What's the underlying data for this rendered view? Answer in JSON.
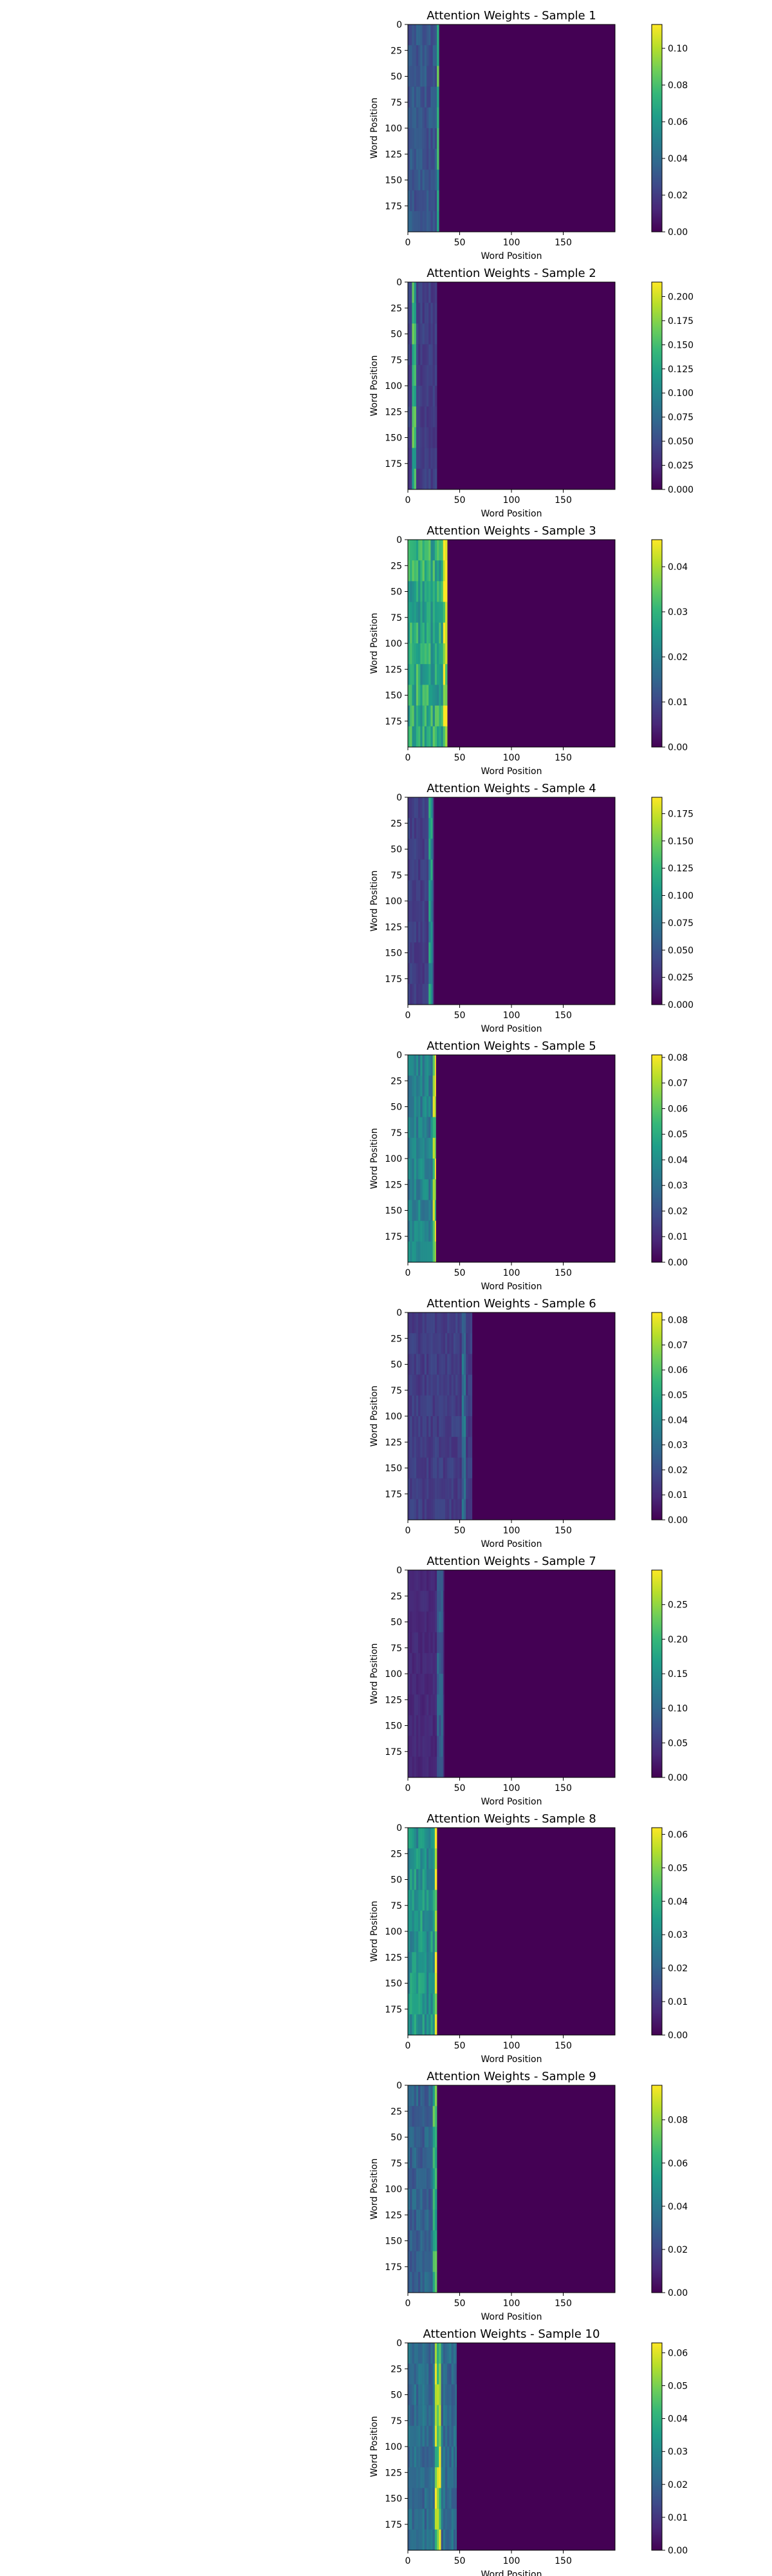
{
  "figure": {
    "colormap": "viridis",
    "viridis_stops": [
      "#440154",
      "#482878",
      "#3e4989",
      "#31688e",
      "#26828e",
      "#1f9e89",
      "#35b779",
      "#6ece58",
      "#b5de2b",
      "#fde725"
    ]
  },
  "chart_data": [
    {
      "type": "heatmap",
      "title": "Attention Weights - Sample 1",
      "xlabel": "Word Position",
      "ylabel": "Word Position",
      "x_ticks": [
        0,
        50,
        100,
        150
      ],
      "y_ticks": [
        0,
        25,
        50,
        75,
        100,
        125,
        150,
        175
      ],
      "xlim": [
        0,
        200
      ],
      "ylim": [
        200,
        0
      ],
      "colorbar": {
        "ticks": [
          "0.00",
          "0.02",
          "0.04",
          "0.06",
          "0.08",
          "0.10"
        ],
        "max": 0.113
      },
      "attended_positions": 30,
      "band_level": 0.03,
      "bright_column": {
        "start": 27,
        "end": 30,
        "level": 0.07
      }
    },
    {
      "type": "heatmap",
      "title": "Attention Weights - Sample 2",
      "xlabel": "Word Position",
      "ylabel": "Word Position",
      "x_ticks": [
        0,
        50,
        100,
        150
      ],
      "y_ticks": [
        0,
        25,
        50,
        75,
        100,
        125,
        150,
        175
      ],
      "xlim": [
        0,
        200
      ],
      "ylim": [
        200,
        0
      ],
      "colorbar": {
        "ticks": [
          "0.000",
          "0.025",
          "0.050",
          "0.075",
          "0.100",
          "0.125",
          "0.150",
          "0.175",
          "0.200"
        ],
        "max": 0.215
      },
      "attended_positions": 28,
      "band_level": 0.04,
      "bright_column": {
        "start": 3,
        "end": 7,
        "level": 0.14
      }
    },
    {
      "type": "heatmap",
      "title": "Attention Weights - Sample 3",
      "xlabel": "Word Position",
      "ylabel": "Word Position",
      "x_ticks": [
        0,
        50,
        100,
        150
      ],
      "y_ticks": [
        0,
        25,
        50,
        75,
        100,
        125,
        150,
        175
      ],
      "xlim": [
        0,
        200
      ],
      "ylim": [
        200,
        0
      ],
      "colorbar": {
        "ticks": [
          "0.00",
          "0.01",
          "0.02",
          "0.03",
          "0.04"
        ],
        "max": 0.046
      },
      "attended_positions": 38,
      "band_level": 0.028,
      "bright_column": {
        "start": 33,
        "end": 37,
        "level": 0.042
      }
    },
    {
      "type": "heatmap",
      "title": "Attention Weights - Sample 4",
      "xlabel": "Word Position",
      "ylabel": "Word Position",
      "x_ticks": [
        0,
        50,
        100,
        150
      ],
      "y_ticks": [
        0,
        25,
        50,
        75,
        100,
        125,
        150,
        175
      ],
      "xlim": [
        0,
        200
      ],
      "ylim": [
        200,
        0
      ],
      "colorbar": {
        "ticks": [
          "0.000",
          "0.025",
          "0.050",
          "0.075",
          "0.100",
          "0.125",
          "0.150",
          "0.175"
        ],
        "max": 0.19
      },
      "attended_positions": 25,
      "band_level": 0.035,
      "bright_column": {
        "start": 19,
        "end": 23,
        "level": 0.1
      }
    },
    {
      "type": "heatmap",
      "title": "Attention Weights - Sample 5",
      "xlabel": "Word Position",
      "ylabel": "Word Position",
      "x_ticks": [
        0,
        50,
        100,
        150
      ],
      "y_ticks": [
        0,
        25,
        50,
        75,
        100,
        125,
        150,
        175
      ],
      "xlim": [
        0,
        200
      ],
      "ylim": [
        200,
        0
      ],
      "colorbar": {
        "ticks": [
          "0.00",
          "0.01",
          "0.02",
          "0.03",
          "0.04",
          "0.05",
          "0.06",
          "0.07",
          "0.08"
        ],
        "max": 0.081
      },
      "attended_positions": 27,
      "band_level": 0.035,
      "bright_column": {
        "start": 24,
        "end": 27,
        "level": 0.07
      }
    },
    {
      "type": "heatmap",
      "title": "Attention Weights - Sample 6",
      "xlabel": "Word Position",
      "ylabel": "Word Position",
      "x_ticks": [
        0,
        50,
        100,
        150
      ],
      "y_ticks": [
        0,
        25,
        50,
        75,
        100,
        125,
        150,
        175
      ],
      "xlim": [
        0,
        200
      ],
      "ylim": [
        200,
        0
      ],
      "colorbar": {
        "ticks": [
          "0.00",
          "0.01",
          "0.02",
          "0.03",
          "0.04",
          "0.05",
          "0.06",
          "0.07",
          "0.08"
        ],
        "max": 0.083
      },
      "attended_positions": 62,
      "band_level": 0.015,
      "bright_column": {
        "start": 52,
        "end": 56,
        "level": 0.03
      }
    },
    {
      "type": "heatmap",
      "title": "Attention Weights - Sample 7",
      "xlabel": "Word Position",
      "ylabel": "Word Position",
      "x_ticks": [
        0,
        50,
        100,
        150
      ],
      "y_ticks": [
        0,
        25,
        50,
        75,
        100,
        125,
        150,
        175
      ],
      "xlim": [
        0,
        200
      ],
      "ylim": [
        200,
        0
      ],
      "colorbar": {
        "ticks": [
          "0.00",
          "0.05",
          "0.10",
          "0.15",
          "0.20",
          "0.25"
        ],
        "max": 0.3
      },
      "attended_positions": 35,
      "band_level": 0.035,
      "bright_column": {
        "start": 28,
        "end": 33,
        "level": 0.09
      }
    },
    {
      "type": "heatmap",
      "title": "Attention Weights - Sample 8",
      "xlabel": "Word Position",
      "ylabel": "Word Position",
      "x_ticks": [
        0,
        50,
        100,
        150
      ],
      "y_ticks": [
        0,
        25,
        50,
        75,
        100,
        125,
        150,
        175
      ],
      "xlim": [
        0,
        200
      ],
      "ylim": [
        200,
        0
      ],
      "colorbar": {
        "ticks": [
          "0.00",
          "0.01",
          "0.02",
          "0.03",
          "0.04",
          "0.05",
          "0.06"
        ],
        "max": 0.062
      },
      "attended_positions": 28,
      "band_level": 0.032,
      "bright_column": {
        "start": 25,
        "end": 28,
        "level": 0.056
      }
    },
    {
      "type": "heatmap",
      "title": "Attention Weights - Sample 9",
      "xlabel": "Word Position",
      "ylabel": "Word Position",
      "x_ticks": [
        0,
        50,
        100,
        150
      ],
      "y_ticks": [
        0,
        25,
        50,
        75,
        100,
        125,
        150,
        175
      ],
      "xlim": [
        0,
        200
      ],
      "ylim": [
        200,
        0
      ],
      "colorbar": {
        "ticks": [
          "0.00",
          "0.02",
          "0.04",
          "0.06",
          "0.08"
        ],
        "max": 0.096
      },
      "attended_positions": 28,
      "band_level": 0.03,
      "bright_column": {
        "start": 24,
        "end": 28,
        "level": 0.065
      }
    },
    {
      "type": "heatmap",
      "title": "Attention Weights - Sample 10",
      "xlabel": "Word Position",
      "ylabel": "Word Position",
      "x_ticks": [
        0,
        50,
        100,
        150
      ],
      "y_ticks": [
        0,
        25,
        50,
        75,
        100,
        125,
        150,
        175
      ],
      "xlim": [
        0,
        200
      ],
      "ylim": [
        200,
        0
      ],
      "colorbar": {
        "ticks": [
          "0.00",
          "0.01",
          "0.02",
          "0.03",
          "0.04",
          "0.05",
          "0.06"
        ],
        "max": 0.063
      },
      "attended_positions": 47,
      "band_level": 0.022,
      "bright_column": {
        "start": 26,
        "end": 32,
        "level": 0.05
      }
    }
  ]
}
